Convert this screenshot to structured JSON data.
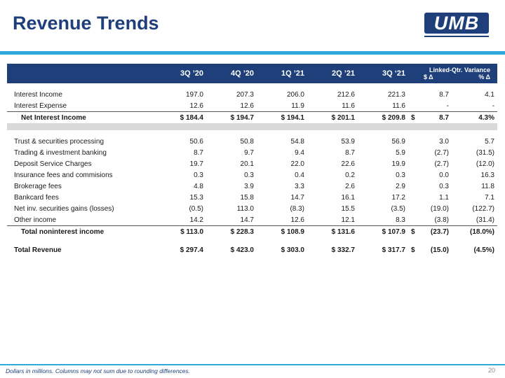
{
  "title": "Revenue Trends",
  "logo": "UMB",
  "columns": [
    "3Q ’20",
    "4Q ’20",
    "1Q ’21",
    "2Q ’21",
    "3Q ‘21"
  ],
  "variance_header": "Linked-Qtr. Variance",
  "variance_sub": [
    "$ Δ",
    "% Δ"
  ],
  "rows": {
    "interest_income": {
      "label": "Interest Income",
      "values": [
        "197.0",
        "207.3",
        "206.0",
        "212.6",
        "221.3",
        "8.7",
        "4.1"
      ]
    },
    "interest_expense": {
      "label": "Interest Expense",
      "values": [
        "12.6",
        "12.6",
        "11.9",
        "11.6",
        "11.6",
        "-",
        "-"
      ]
    },
    "net_interest_income": {
      "label": "Net Interest Income",
      "values": [
        "$ 184.4",
        "$ 194.7",
        "$ 194.1",
        "$ 201.1",
        "$ 209.8",
        "8.7",
        "4.3%"
      ],
      "var_cur": "$"
    },
    "trust": {
      "label": "Trust & securities processing",
      "values": [
        "50.6",
        "50.8",
        "54.8",
        "53.9",
        "56.9",
        "3.0",
        "5.7"
      ]
    },
    "trading": {
      "label": "Trading & investment banking",
      "values": [
        "8.7",
        "9.7",
        "9.4",
        "8.7",
        "5.9",
        "(2.7)",
        "(31.5)"
      ]
    },
    "deposit": {
      "label": "Deposit Service Charges",
      "values": [
        "19.7",
        "20.1",
        "22.0",
        "22.6",
        "19.9",
        "(2.7)",
        "(12.0)"
      ]
    },
    "insurance": {
      "label": "Insurance fees and commisions",
      "values": [
        "0.3",
        "0.3",
        "0.4",
        "0.2",
        "0.3",
        "0.0",
        "16.3"
      ]
    },
    "brokerage": {
      "label": "Brokerage fees",
      "values": [
        "4.8",
        "3.9",
        "3.3",
        "2.6",
        "2.9",
        "0.3",
        "11.8"
      ]
    },
    "bankcard": {
      "label": "Bankcard fees",
      "values": [
        "15.3",
        "15.8",
        "14.7",
        "16.1",
        "17.2",
        "1.1",
        "7.1"
      ]
    },
    "securities_gains": {
      "label": "Net inv. securities gains (losses)",
      "values": [
        "(0.5)",
        "113.0",
        "(8.3)",
        "15.5",
        "(3.5)",
        "(19.0)",
        "(122.7)"
      ]
    },
    "other_income": {
      "label": "Other income",
      "values": [
        "14.2",
        "14.7",
        "12.6",
        "12.1",
        "8.3",
        "(3.8)",
        "(31.4)"
      ]
    },
    "total_nonint": {
      "label": "Total noninterest income",
      "values": [
        "$ 113.0",
        "$ 228.3",
        "$ 108.9",
        "$ 131.6",
        "$ 107.9",
        "(23.7)",
        "(18.0%)"
      ],
      "var_cur": "$"
    },
    "total_revenue": {
      "label": "Total Revenue",
      "values": [
        "$ 297.4",
        "$ 423.0",
        "$ 303.0",
        "$ 332.7",
        "$ 317.7",
        "(15.0)",
        "(4.5%)"
      ],
      "var_cur": "$"
    }
  },
  "footnote": "Dollars in millions. Columns may not sum due to rounding differences.",
  "page_number": "20",
  "colors": {
    "navy": "#1f3f7a",
    "accent": "#2fa8dc",
    "band": "#d9d9d9"
  }
}
